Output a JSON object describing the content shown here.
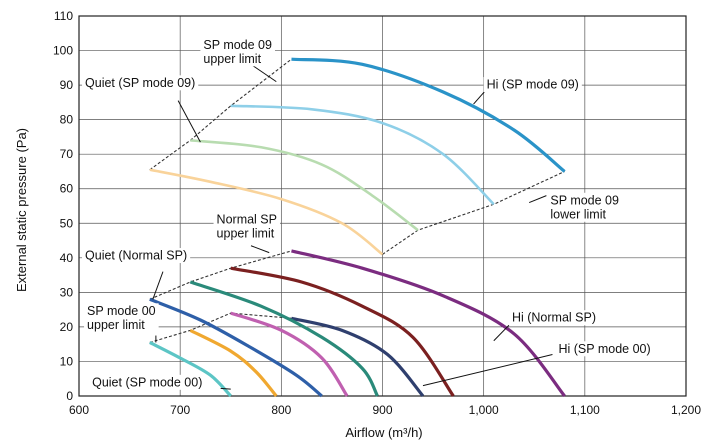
{
  "chart_data": {
    "type": "line",
    "xlabel": "Airflow (m³/h)",
    "ylabel": "External static pressure (Pa)",
    "xlim": [
      600,
      1200
    ],
    "ylim": [
      0,
      110
    ],
    "xticks": [
      600,
      700,
      800,
      900,
      1000,
      1100,
      1200
    ],
    "xtick_labels": [
      "600",
      "700",
      "800",
      "900",
      "1,000",
      "1,100",
      "1,200"
    ],
    "yticks": [
      0,
      10,
      20,
      30,
      40,
      50,
      60,
      70,
      80,
      90,
      100,
      110
    ],
    "grid": true,
    "series": [
      {
        "name": "Hi (SP mode 09)",
        "color": "#2a93c8",
        "width": 3.2,
        "points": [
          [
            810,
            97.5
          ],
          [
            880,
            96
          ],
          [
            960,
            88
          ],
          [
            1030,
            77
          ],
          [
            1080,
            65
          ]
        ]
      },
      {
        "name": "",
        "color": "#8ecfe8",
        "width": 2.6,
        "points": [
          [
            750,
            84
          ],
          [
            830,
            83
          ],
          [
            900,
            79
          ],
          [
            960,
            70
          ],
          [
            1010,
            55.5
          ]
        ]
      },
      {
        "name": "",
        "color": "#b8dcb0",
        "width": 2.6,
        "points": [
          [
            710,
            74
          ],
          [
            780,
            72
          ],
          [
            840,
            67
          ],
          [
            890,
            58
          ],
          [
            935,
            48
          ]
        ]
      },
      {
        "name": "Quiet (SP mode 09)",
        "color": "#f9d39a",
        "width": 2.6,
        "points": [
          [
            670,
            65.5
          ],
          [
            730,
            62
          ],
          [
            800,
            57
          ],
          [
            860,
            50
          ],
          [
            900,
            41
          ]
        ]
      },
      {
        "name": "Hi (Normal SP)",
        "color": "#7b2c80",
        "width": 3.2,
        "points": [
          [
            810,
            42
          ],
          [
            880,
            37
          ],
          [
            960,
            29
          ],
          [
            1030,
            18
          ],
          [
            1080,
            0
          ]
        ]
      },
      {
        "name": "",
        "color": "#7b2020",
        "width": 3.2,
        "points": [
          [
            750,
            37
          ],
          [
            820,
            33
          ],
          [
            880,
            26
          ],
          [
            930,
            17
          ],
          [
            970,
            0
          ]
        ]
      },
      {
        "name": "",
        "color": "#2f3f6e",
        "width": 3.2,
        "points": [
          [
            810,
            22.5
          ],
          [
            860,
            19
          ],
          [
            905,
            12
          ],
          [
            940,
            0
          ]
        ]
      },
      {
        "name": "",
        "color": "#2a8a7a",
        "width": 3.2,
        "points": [
          [
            710,
            33
          ],
          [
            780,
            26
          ],
          [
            840,
            17
          ],
          [
            880,
            8
          ],
          [
            895,
            0
          ]
        ]
      },
      {
        "name": "",
        "color": "#c060b0",
        "width": 3.2,
        "points": [
          [
            750,
            24
          ],
          [
            800,
            19
          ],
          [
            840,
            11
          ],
          [
            865,
            0
          ]
        ]
      },
      {
        "name": "Quiet (Normal SP)",
        "color": "#2e5fa8",
        "width": 3.2,
        "points": [
          [
            670,
            28
          ],
          [
            720,
            22
          ],
          [
            770,
            14
          ],
          [
            815,
            6
          ],
          [
            840,
            0
          ]
        ]
      },
      {
        "name": "",
        "color": "#f0a830",
        "width": 3.2,
        "points": [
          [
            710,
            19
          ],
          [
            750,
            13
          ],
          [
            775,
            7
          ],
          [
            795,
            0
          ]
        ]
      },
      {
        "name": "Quiet (SP mode 00)",
        "color": "#5cc5c5",
        "width": 3.2,
        "points": [
          [
            670,
            15.5
          ],
          [
            700,
            11
          ],
          [
            730,
            6
          ],
          [
            750,
            0
          ]
        ]
      }
    ],
    "limit_lines": [
      {
        "name": "SP mode 09 upper limit",
        "points": [
          [
            670,
            65.5
          ],
          [
            710,
            74
          ],
          [
            750,
            84
          ],
          [
            810,
            97.5
          ]
        ]
      },
      {
        "name": "SP mode 09 lower limit",
        "points": [
          [
            900,
            41
          ],
          [
            935,
            48
          ],
          [
            1010,
            55.5
          ],
          [
            1080,
            65
          ]
        ]
      },
      {
        "name": "Normal SP upper limit",
        "points": [
          [
            670,
            28
          ],
          [
            710,
            33
          ],
          [
            750,
            37
          ],
          [
            810,
            42
          ]
        ]
      },
      {
        "name": "SP mode 00 upper limit",
        "points": [
          [
            670,
            15.5
          ],
          [
            710,
            19
          ],
          [
            750,
            24
          ],
          [
            810,
            22.5
          ]
        ]
      }
    ],
    "annotations": [
      {
        "name": "SP mode 09 upper limit",
        "lines": [
          "SP mode 09",
          "upper limit"
        ],
        "box": true,
        "anchor": [
          720,
          100.5
        ],
        "leader": [
          [
            770,
            96
          ],
          [
            795,
            91
          ]
        ]
      },
      {
        "name": "Quiet (SP mode 09)",
        "lines": [
          "Quiet (SP mode 09)"
        ],
        "box": true,
        "anchor": [
          603,
          89.5
        ],
        "leader": [
          [
            698,
            85.5
          ],
          [
            720,
            73.5
          ]
        ]
      },
      {
        "name": "Hi (SP mode 09)",
        "lines": [
          "Hi (SP mode 09)"
        ],
        "box": true,
        "anchor": [
          1000,
          89
        ],
        "leader": [
          [
            1002,
            88.5
          ],
          [
            990,
            84.5
          ]
        ]
      },
      {
        "name": "SP mode 09 lower limit",
        "lines": [
          "SP mode 09",
          "lower limit"
        ],
        "box": true,
        "anchor": [
          1063,
          55.5
        ],
        "leader": [
          [
            1062,
            58
          ],
          [
            1045,
            56
          ]
        ]
      },
      {
        "name": "Normal SP upper limit",
        "lines": [
          "Normal SP",
          "upper limit"
        ],
        "box": true,
        "anchor": [
          733,
          50
        ],
        "leader": [
          [
            770,
            43.5
          ],
          [
            788,
            41.5
          ]
        ]
      },
      {
        "name": "Quiet (Normal SP)",
        "lines": [
          "Quiet (Normal SP)"
        ],
        "box": true,
        "anchor": [
          603,
          39.5
        ],
        "leader": [
          [
            683,
            36
          ],
          [
            673,
            28
          ]
        ]
      },
      {
        "name": "SP mode 00 upper limit",
        "lines": [
          "SP mode 00",
          "upper limit"
        ],
        "box": true,
        "anchor": [
          605,
          23.5
        ],
        "leader": [
          [
            676,
            17.5
          ],
          [
            676,
            15.5
          ]
        ]
      },
      {
        "name": "Hi (Normal SP)",
        "lines": [
          "Hi (Normal SP)"
        ],
        "box": true,
        "anchor": [
          1025,
          21.5
        ],
        "leader": [
          [
            1025,
            20.5
          ],
          [
            1010,
            16
          ]
        ]
      },
      {
        "name": "Hi (SP mode 00)",
        "lines": [
          "Hi (SP mode 00)"
        ],
        "box": true,
        "anchor": [
          1071,
          12.5
        ],
        "leader": [
          [
            1068,
            12
          ],
          [
            940,
            3
          ]
        ]
      },
      {
        "name": "Quiet (SP mode 00)",
        "lines": [
          "Quiet (SP mode 00)"
        ],
        "box": true,
        "anchor": [
          610,
          2.8
        ],
        "leader": [
          [
            740,
            2.2
          ],
          [
            750,
            2
          ]
        ]
      }
    ]
  }
}
